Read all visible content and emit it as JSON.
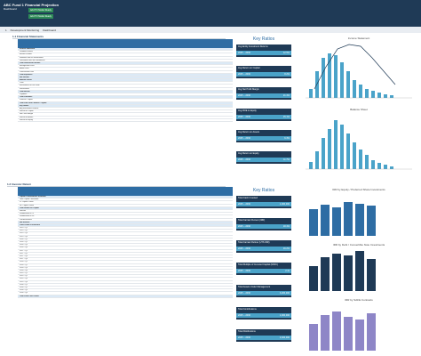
{
  "header": {
    "title": "ABC Fund 1 Financial Projection",
    "subtitle": "Dashboard",
    "button1": "Add TO Model Ready",
    "button2": "Add TO Model Ready"
  },
  "nav": {
    "items": [
      "1",
      "Development Monitoring",
      "Dashboard"
    ]
  },
  "sections": {
    "s1_label": "1.1  Financial Statements",
    "s2_label": "1.2  Investor Return"
  },
  "key_ratios_1": {
    "title": "Key Ratios",
    "boxes": [
      {
        "label": "Avg Entity Investment Returns",
        "value": "12.5%"
      },
      {
        "label": "Avg Return on Capital",
        "value": "8.2%"
      },
      {
        "label": "Avg Net Profit Margin",
        "value": "21.4%"
      },
      {
        "label": "Avg ROE to Equity",
        "value": "15.1%"
      },
      {
        "label": "Avg Return on Assets",
        "value": "6.3%"
      },
      {
        "label": "Avg Return on Equity",
        "value": "11.7%"
      }
    ],
    "period": "2025 – 2030"
  },
  "key_ratios_2": {
    "title": "Key Ratios",
    "boxes": [
      {
        "label": "Total Cash Invested",
        "value": "1,000,000"
      },
      {
        "label": "Total Carried Percent (IRR)",
        "value": "18.4%"
      },
      {
        "label": "Total Carried Partner (UTS IRR)",
        "value": "16.2%"
      },
      {
        "label": "Total Multiple of Invested Capital (MOIC)",
        "value": "2.4x"
      },
      {
        "label": "Total Assets Under Management",
        "value": "3,200,000"
      },
      {
        "label": "Total Contributions",
        "value": "1,000,000"
      },
      {
        "label": "Total Distributions",
        "value": "2,400,000"
      }
    ],
    "period": "2025 – 2030"
  },
  "charts": {
    "income_title": "Income Statement",
    "balance_title": "Balance Sheet",
    "irr1_title": "IRR by Equity / Preferred Share Investments",
    "irr2_title": "IRR by Debt / Convertible Note Investments",
    "irr3_title": "IRR by SAFE Contracts"
  },
  "table1": {
    "rows": [
      {
        "label": "Income Statement",
        "type": "hl"
      },
      {
        "label": "Dividend Income"
      },
      {
        "label": "Interest Income"
      },
      {
        "label": "Realized Gain on Investments"
      },
      {
        "label": "Unrealized Gain on Investments"
      },
      {
        "label": "Total Investment Income",
        "type": "hl"
      },
      {
        "label": "Management Fees",
        "type": "red"
      },
      {
        "label": "Admin Fees",
        "type": "red"
      },
      {
        "label": "Professional Fees",
        "type": "red"
      },
      {
        "label": "Total Expenses",
        "type": "hl"
      },
      {
        "label": "Net Income",
        "type": "hl"
      },
      {
        "label": "Balance Sheet",
        "type": "hl"
      },
      {
        "label": "Cash"
      },
      {
        "label": "Investments at Fair Value"
      },
      {
        "label": "Receivables"
      },
      {
        "label": "Total Assets",
        "type": "hl"
      },
      {
        "label": "Payables",
        "type": "red"
      },
      {
        "label": "Total Liabilities",
        "type": "hl"
      },
      {
        "label": "Partners' Capital"
      },
      {
        "label": "Total Liab. and Partners' Capital",
        "type": "hl"
      },
      {
        "label": "Key Ratios",
        "type": "hl"
      },
      {
        "label": "Avg Investment Returns"
      },
      {
        "label": "Return on Capital"
      },
      {
        "label": "Net Profit Margin"
      },
      {
        "label": "Return on Assets"
      },
      {
        "label": "Return on Equity"
      }
    ]
  },
  "table2": {
    "rows": [
      {
        "label": "Capital Contributions Schedule",
        "type": "hl"
      },
      {
        "label": "Total Capital Committed"
      },
      {
        "label": "LP Capital Called"
      },
      {
        "label": "GP Capital Called"
      },
      {
        "label": "Total Return on Capital",
        "type": "hl"
      },
      {
        "label": "Returns",
        "type": "red"
      },
      {
        "label": "Distributions to LP"
      },
      {
        "label": "Distributions to GP"
      },
      {
        "label": "Carried Interest"
      },
      {
        "label": "Net Returns",
        "type": "hl"
      },
      {
        "label": "Cash Flows to Investors",
        "type": "hl"
      },
      {
        "label": "2025 - Q1"
      },
      {
        "label": "2025 - Q2"
      },
      {
        "label": "2025 - Q3"
      },
      {
        "label": "2025 - Q4"
      },
      {
        "label": "2026 - Q1"
      },
      {
        "label": "2026 - Q2"
      },
      {
        "label": "2026 - Q3"
      },
      {
        "label": "2026 - Q4"
      },
      {
        "label": "2027 - Q1"
      },
      {
        "label": "2027 - Q2"
      },
      {
        "label": "2027 - Q3"
      },
      {
        "label": "2027 - Q4"
      },
      {
        "label": "2028 - Q1"
      },
      {
        "label": "2028 - Q2"
      },
      {
        "label": "2028 - Q3"
      },
      {
        "label": "2028 - Q4"
      },
      {
        "label": "2029 - Q1"
      },
      {
        "label": "2029 - Q2"
      },
      {
        "label": "2029 - Q3"
      },
      {
        "label": "2029 - Q4"
      },
      {
        "label": "2030 - Q1"
      },
      {
        "label": "2030 - Q2"
      },
      {
        "label": "2030 - Q3"
      },
      {
        "label": "2030 - Q4"
      },
      {
        "label": "Total Fund Cash Flows",
        "type": "hl"
      }
    ]
  },
  "colors": {
    "navy": "#1f3a56",
    "blue": "#2e6da4",
    "teal": "#4aa3c9",
    "purple": "#8e86c7"
  }
}
